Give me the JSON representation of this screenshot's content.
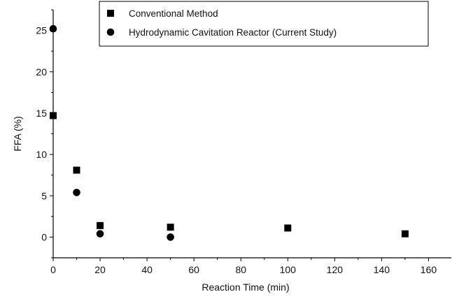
{
  "chart_data": {
    "type": "scatter",
    "title": "",
    "xlabel": "Reaction Time (min)",
    "ylabel": "FFA (%)",
    "xlim": [
      0,
      170
    ],
    "ylim": [
      -2.5,
      27.5
    ],
    "xticks": [
      0,
      20,
      40,
      60,
      80,
      100,
      120,
      140,
      160
    ],
    "yticks": [
      0,
      5,
      10,
      15,
      20,
      25
    ],
    "grid": false,
    "legend_position": "top",
    "series": [
      {
        "name": "Conventional Method",
        "marker": "square",
        "x": [
          0,
          10,
          20,
          50,
          100,
          150
        ],
        "y": [
          14.7,
          8.1,
          1.4,
          1.2,
          1.1,
          0.4
        ]
      },
      {
        "name": "Hydrodynamic Cavitation Reactor (Current Study)",
        "marker": "circle",
        "x": [
          0,
          10,
          20,
          50
        ],
        "y": [
          25.2,
          5.4,
          0.4,
          0.0
        ]
      }
    ],
    "colors": {
      "marker": "#000000",
      "axis": "#000000"
    }
  }
}
